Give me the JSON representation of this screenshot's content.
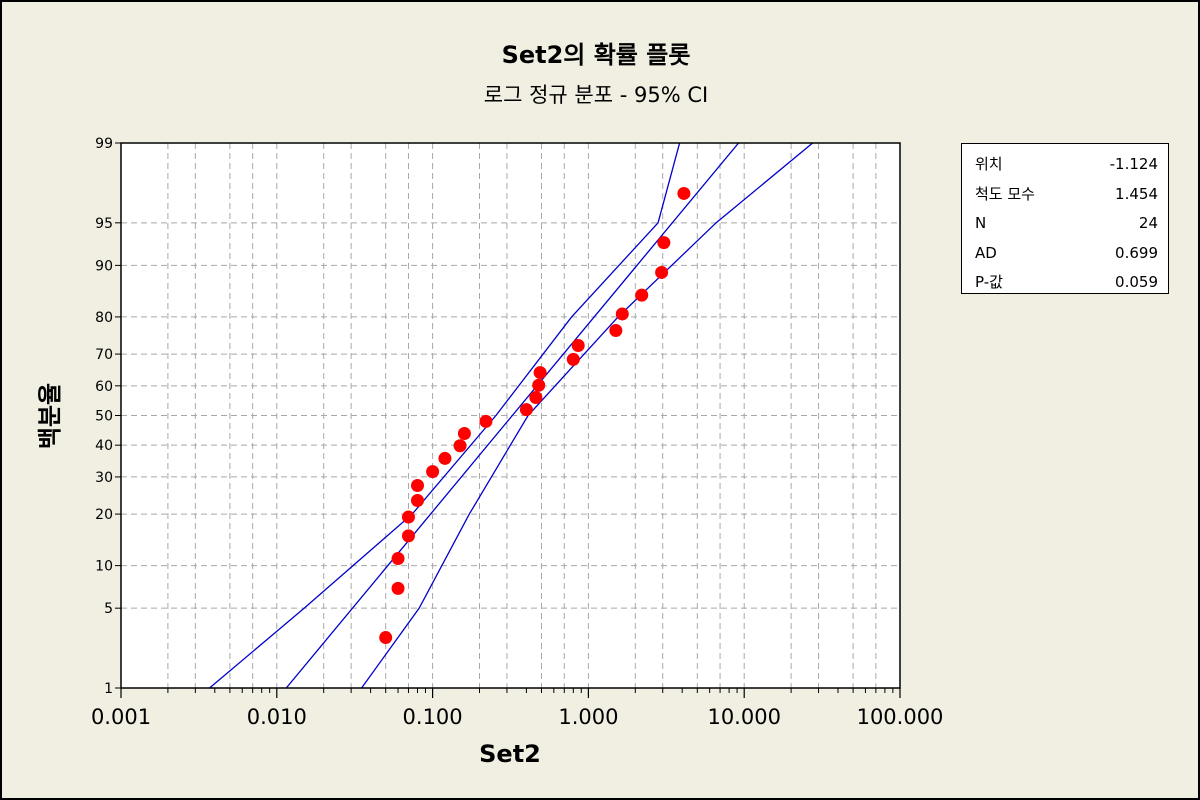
{
  "chart_data": {
    "type": "scatter",
    "title": "Set2의 확률 플롯",
    "subtitle": "로그 정규 분포 - 95% CI",
    "xlabel": "Set2",
    "ylabel": "백분율",
    "x_scale": "log",
    "y_scale": "normal-probability",
    "xlim": [
      0.001,
      100
    ],
    "ylim": [
      1,
      99
    ],
    "x_ticks": [
      0.001,
      0.01,
      0.1,
      1,
      10,
      100
    ],
    "x_tick_labels": [
      "0.001",
      "0.010",
      "0.100",
      "1.000",
      "10.000",
      "100.000"
    ],
    "y_ticks": [
      1,
      5,
      10,
      20,
      30,
      40,
      50,
      60,
      70,
      80,
      90,
      95,
      99
    ],
    "y_tick_labels": [
      "1",
      "5",
      "10",
      "20",
      "30",
      "40",
      "50",
      "60",
      "70",
      "80",
      "90",
      "95",
      "99"
    ],
    "grid": true,
    "series": [
      {
        "type": "points",
        "color": "#ff0000",
        "points": [
          {
            "x": 0.05,
            "y": 2.9
          },
          {
            "x": 0.06,
            "y": 7.0
          },
          {
            "x": 0.06,
            "y": 11.1
          },
          {
            "x": 0.07,
            "y": 15.2
          },
          {
            "x": 0.07,
            "y": 19.3
          },
          {
            "x": 0.08,
            "y": 23.4
          },
          {
            "x": 0.08,
            "y": 27.5
          },
          {
            "x": 0.1,
            "y": 31.6
          },
          {
            "x": 0.12,
            "y": 35.7
          },
          {
            "x": 0.15,
            "y": 39.8
          },
          {
            "x": 0.16,
            "y": 43.9
          },
          {
            "x": 0.22,
            "y": 48.0
          },
          {
            "x": 0.4,
            "y": 52.0
          },
          {
            "x": 0.46,
            "y": 56.1
          },
          {
            "x": 0.48,
            "y": 60.2
          },
          {
            "x": 0.49,
            "y": 64.3
          },
          {
            "x": 0.8,
            "y": 68.4
          },
          {
            "x": 0.86,
            "y": 72.5
          },
          {
            "x": 1.5,
            "y": 76.6
          },
          {
            "x": 1.65,
            "y": 80.7
          },
          {
            "x": 2.2,
            "y": 84.8
          },
          {
            "x": 2.95,
            "y": 88.9
          },
          {
            "x": 3.05,
            "y": 93.0
          },
          {
            "x": 4.1,
            "y": 97.1
          }
        ]
      },
      {
        "type": "fit-line",
        "color": "#0000cc",
        "points": [
          {
            "x": 0.0115,
            "y": 1
          },
          {
            "x": 0.325,
            "y": 50
          },
          {
            "x": 9.2,
            "y": 99
          }
        ]
      },
      {
        "type": "ci-lower",
        "color": "#0000cc",
        "points": [
          {
            "x": 0.0037,
            "y": 1
          },
          {
            "x": 0.015,
            "y": 5
          },
          {
            "x": 0.074,
            "y": 20
          },
          {
            "x": 0.255,
            "y": 50
          },
          {
            "x": 0.78,
            "y": 80
          },
          {
            "x": 2.8,
            "y": 95
          },
          {
            "x": 3.85,
            "y": 99
          }
        ]
      },
      {
        "type": "ci-upper",
        "color": "#0000cc",
        "points": [
          {
            "x": 0.035,
            "y": 1
          },
          {
            "x": 0.082,
            "y": 5
          },
          {
            "x": 0.172,
            "y": 20
          },
          {
            "x": 0.41,
            "y": 50
          },
          {
            "x": 1.55,
            "y": 80
          },
          {
            "x": 6.6,
            "y": 95
          },
          {
            "x": 27.5,
            "y": 99
          }
        ]
      }
    ]
  },
  "stats": [
    {
      "label": "위치",
      "value": "-1.124"
    },
    {
      "label": "척도 모수",
      "value": "1.454"
    },
    {
      "label": "N",
      "value": "24"
    },
    {
      "label": "AD",
      "value": "0.699"
    },
    {
      "label": "P-값",
      "value": "0.059"
    }
  ]
}
